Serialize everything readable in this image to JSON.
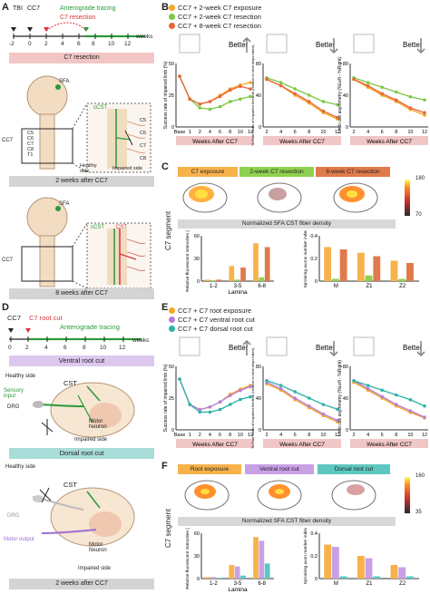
{
  "panels": {
    "A": "A",
    "B": "B",
    "C": "C",
    "D": "D",
    "E": "E",
    "F": "F"
  },
  "timelineA": {
    "tbi": "TBI",
    "cc7": "CC7",
    "tracing": "Anterograde tracing",
    "resection": "C7 resection",
    "ticks": [
      "-2",
      "0",
      "2",
      "4",
      "6",
      "8",
      "10",
      "12"
    ],
    "unit": "weeks",
    "banner": "C7 resection"
  },
  "anatA": {
    "sfa": "SFA",
    "ccst": "cCST",
    "cc7": "CC7",
    "segments": [
      "C5",
      "C6",
      "C7",
      "C8",
      "T1"
    ],
    "healthy": "Healthy side",
    "impaired": "Impaired side",
    "cap1": "2 weeks after CC7",
    "cst": "CST",
    "cap2": "8 weeks after CC7"
  },
  "legendB": [
    {
      "label": "CC7 + 2-week C7 exposure",
      "color": "#f5a623"
    },
    {
      "label": "CC7 + 2-week C7 resection",
      "color": "#7ac943"
    },
    {
      "label": "CC7 + 8-week C7 resection",
      "color": "#e5673a"
    }
  ],
  "better": "Better",
  "weeksAfter": "Weeks After CC7",
  "baseline": "Base",
  "yB": [
    "Success rate of impaired limb (%)",
    "% Foot faults of impaired forelimb (relative to total steps taken)",
    "Limb use asymmetry (%Left - %Right)"
  ],
  "panelC": {
    "conds": [
      {
        "label": "C7 exposure",
        "color": "#f7b24a"
      },
      {
        "label": "2-week C7 resection",
        "color": "#8fd14f"
      },
      {
        "label": "8-week C7 resection",
        "color": "#e07a4a"
      }
    ],
    "density": "Normalized SFA CST fiber density",
    "scaleMax": "180",
    "scaleMin": "70",
    "segment": "C7 segment",
    "ylab1": "Relative fluorescent intensities (%)",
    "ylab2": "Sprouting axons number index",
    "lamina": "Lamina",
    "laminaCats": [
      "1-2",
      "3-5",
      "6-8"
    ],
    "regionCats": [
      "M",
      "Z1",
      "Z2"
    ]
  },
  "timelineD": {
    "cc7": "CC7",
    "cut": "C7 root cut",
    "tracing": "Anterograde tracing",
    "ticks": [
      "0",
      "2",
      "4",
      "6",
      "8",
      "10",
      "12"
    ],
    "unit": "weeks",
    "ventral": "Ventral root cut",
    "dorsal": "Dorsal root cut"
  },
  "anatD": {
    "healthy": "Healthy side",
    "sensory": "Sensory input",
    "drg": "DRG",
    "cst": "CST",
    "motor": "Motor Neuron",
    "impaired": "Impaired side",
    "healthy2": "Healthy side",
    "motorOut": "Motor output",
    "cap": "2 weeks after CC7"
  },
  "legendE": [
    {
      "label": "CC7 + C7 root exposure",
      "color": "#f5a623"
    },
    {
      "label": "CC7 + C7 ventral root cut",
      "color": "#b57fd8"
    },
    {
      "label": "CC7 + C7 dorsal root cut",
      "color": "#2bb3a8"
    }
  ],
  "panelF": {
    "conds": [
      {
        "label": "Root exposure",
        "color": "#f7b24a"
      },
      {
        "label": "Ventral root cut",
        "color": "#c9a0e6"
      },
      {
        "label": "Dorsal root cut",
        "color": "#5ec8c0"
      }
    ],
    "density": "Normalized SFA CST fiber density",
    "scaleMax": "160",
    "scaleMin": "35",
    "segment": "C7 segment"
  },
  "chart_data": [
    {
      "type": "line",
      "title": "",
      "ylabel": "Success rate of impaired limb (%)",
      "x": [
        "Base",
        "1",
        "2",
        "4",
        "6",
        "8",
        "10",
        "12"
      ],
      "series": [
        {
          "name": "CC7 + 2-week C7 exposure",
          "values": [
            40,
            22,
            18,
            20,
            25,
            30,
            33,
            35
          ]
        },
        {
          "name": "CC7 + 2-week C7 resection",
          "values": [
            40,
            22,
            15,
            14,
            16,
            20,
            22,
            24
          ]
        },
        {
          "name": "CC7 + 8-week C7 resection",
          "values": [
            40,
            22,
            18,
            20,
            24,
            29,
            32,
            30
          ]
        }
      ],
      "ylim": [
        0,
        50
      ]
    },
    {
      "type": "line",
      "ylabel": "% Foot faults of impaired forelimb",
      "x": [
        "2",
        "4",
        "6",
        "8",
        "10",
        "12"
      ],
      "series": [
        {
          "name": "CC7 + 2-week C7 exposure",
          "values": [
            60,
            52,
            40,
            30,
            18,
            10
          ]
        },
        {
          "name": "CC7 + 2-week C7 resection",
          "values": [
            62,
            56,
            48,
            40,
            32,
            28
          ]
        },
        {
          "name": "CC7 + 8-week C7 resection",
          "values": [
            60,
            52,
            42,
            32,
            20,
            12
          ]
        }
      ],
      "ylim": [
        0,
        80
      ]
    },
    {
      "type": "line",
      "ylabel": "Limb use asymmetry (%Left - %Right)",
      "x": [
        "2",
        "4",
        "6",
        "8",
        "10",
        "12"
      ],
      "series": [
        {
          "name": "CC7 + 2-week C7 exposure",
          "values": [
            60,
            50,
            40,
            32,
            22,
            15
          ]
        },
        {
          "name": "CC7 + 2-week C7 resection",
          "values": [
            62,
            56,
            50,
            44,
            38,
            34
          ]
        },
        {
          "name": "CC7 + 8-week C7 resection",
          "values": [
            60,
            52,
            42,
            34,
            24,
            18
          ]
        }
      ],
      "ylim": [
        0,
        80
      ]
    },
    {
      "type": "bar",
      "ylabel": "Relative fluorescent intensities (%)",
      "categories": [
        "1-2",
        "3-5",
        "6-8"
      ],
      "series": [
        {
          "name": "C7 exposure",
          "values": [
            2,
            20,
            50
          ]
        },
        {
          "name": "2-week C7 resection",
          "values": [
            1,
            2,
            5
          ]
        },
        {
          "name": "8-week C7 resection",
          "values": [
            2,
            18,
            45
          ]
        }
      ],
      "ylim": [
        0,
        60
      ]
    },
    {
      "type": "bar",
      "ylabel": "Sprouting axons number index",
      "categories": [
        "M",
        "Z1",
        "Z2"
      ],
      "series": [
        {
          "name": "C7 exposure",
          "values": [
            0.3,
            0.25,
            0.18
          ]
        },
        {
          "name": "2-week C7 resection",
          "values": [
            0.02,
            0.05,
            0.02
          ]
        },
        {
          "name": "8-week C7 resection",
          "values": [
            0.28,
            0.22,
            0.16
          ]
        }
      ],
      "ylim": [
        0,
        0.4
      ]
    },
    {
      "type": "line",
      "ylabel": "Success rate of impaired limb (%)",
      "x": [
        "Base",
        "1",
        "2",
        "4",
        "6",
        "8",
        "10",
        "12"
      ],
      "series": [
        {
          "name": "CC7 + C7 root exposure",
          "values": [
            40,
            20,
            16,
            18,
            22,
            28,
            32,
            35
          ]
        },
        {
          "name": "CC7 + C7 ventral root cut",
          "values": [
            40,
            20,
            16,
            18,
            22,
            27,
            31,
            34
          ]
        },
        {
          "name": "CC7 + C7 dorsal root cut",
          "values": [
            40,
            20,
            14,
            14,
            16,
            20,
            24,
            26
          ]
        }
      ],
      "ylim": [
        0,
        50
      ]
    },
    {
      "type": "line",
      "ylabel": "% Foot faults of impaired forelimb",
      "x": [
        "2",
        "4",
        "6",
        "8",
        "10",
        "12"
      ],
      "series": [
        {
          "name": "CC7 + C7 root exposure",
          "values": [
            58,
            50,
            38,
            28,
            18,
            10
          ]
        },
        {
          "name": "CC7 + C7 ventral root cut",
          "values": [
            60,
            52,
            40,
            30,
            20,
            12
          ]
        },
        {
          "name": "CC7 + C7 dorsal root cut",
          "values": [
            62,
            56,
            48,
            40,
            32,
            26
          ]
        }
      ],
      "ylim": [
        0,
        80
      ]
    },
    {
      "type": "line",
      "ylabel": "Limb use asymmetry (%Left - %Right)",
      "x": [
        "2",
        "4",
        "6",
        "8",
        "10",
        "12"
      ],
      "series": [
        {
          "name": "CC7 + C7 root exposure",
          "values": [
            60,
            50,
            40,
            30,
            22,
            15
          ]
        },
        {
          "name": "CC7 + C7 ventral root cut",
          "values": [
            62,
            52,
            42,
            32,
            24,
            16
          ]
        },
        {
          "name": "CC7 + C7 dorsal root cut",
          "values": [
            62,
            56,
            50,
            44,
            38,
            30
          ]
        }
      ],
      "ylim": [
        0,
        80
      ]
    },
    {
      "type": "bar",
      "ylabel": "Relative fluorescent intensities (%)",
      "categories": [
        "1-2",
        "3-5",
        "6-8"
      ],
      "series": [
        {
          "name": "Root exposure",
          "values": [
            2,
            18,
            55
          ]
        },
        {
          "name": "Ventral root cut",
          "values": [
            2,
            16,
            50
          ]
        },
        {
          "name": "Dorsal root cut",
          "values": [
            1,
            4,
            20
          ]
        }
      ],
      "ylim": [
        0,
        60
      ]
    },
    {
      "type": "bar",
      "ylabel": "Sprouting axon number index",
      "categories": [
        "M",
        "Z1",
        "Z2"
      ],
      "series": [
        {
          "name": "Root exposure",
          "values": [
            0.3,
            0.2,
            0.12
          ]
        },
        {
          "name": "Ventral root cut",
          "values": [
            0.28,
            0.18,
            0.1
          ]
        },
        {
          "name": "Dorsal root cut",
          "values": [
            0.02,
            0.02,
            0.02
          ]
        }
      ],
      "ylim": [
        0,
        0.4
      ]
    }
  ]
}
